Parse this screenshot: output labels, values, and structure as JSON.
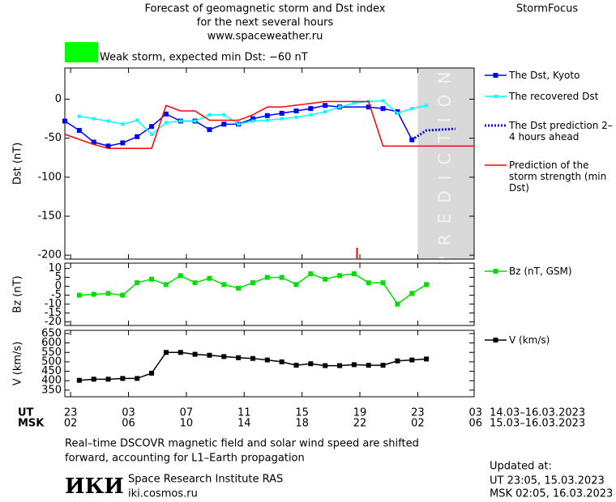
{
  "header": {
    "title_lines": [
      "Forecast of geomagnetic storm and Dst index",
      "for the next several hours",
      "www.spaceweather.ru"
    ],
    "brand": "StormFocus",
    "storm_status": {
      "color": "#00ff00",
      "text": "Weak storm, expected min Dst: −60 nT"
    }
  },
  "time_axis": {
    "xlim": [
      -0.4,
      27.9
    ],
    "ut_label": "UT",
    "msk_label": "MSK",
    "ut_ticks": [
      {
        "value": 0,
        "label": "23"
      },
      {
        "value": 4,
        "label": "03"
      },
      {
        "value": 8,
        "label": "07"
      },
      {
        "value": 12,
        "label": "11"
      },
      {
        "value": 16,
        "label": "15"
      },
      {
        "value": 20,
        "label": "19"
      },
      {
        "value": 24,
        "label": "23"
      },
      {
        "value": 28,
        "label": "03"
      }
    ],
    "msk_ticks": [
      {
        "value": 0,
        "label": "02"
      },
      {
        "value": 4,
        "label": "06"
      },
      {
        "value": 8,
        "label": "10"
      },
      {
        "value": 12,
        "label": "14"
      },
      {
        "value": 16,
        "label": "18"
      },
      {
        "value": 20,
        "label": "22"
      },
      {
        "value": 24,
        "label": "02"
      },
      {
        "value": 28,
        "label": "06"
      }
    ],
    "ut_range": "14.03–16.03.2023",
    "msk_range": "15.03–16.03.2023"
  },
  "chart_data": [
    {
      "type": "line",
      "ylabel": "Dst (nT)",
      "ylim": [
        -205,
        40
      ],
      "yticks": [
        0,
        -50,
        -100,
        -150,
        -200
      ],
      "prediction_band": {
        "label": "PREDICTION",
        "start": 24
      },
      "current_time": 19.8,
      "series": [
        {
          "name": "The Dst, Kyoto",
          "color": "#0000ff",
          "marker": "square",
          "dash": "solid",
          "x": [
            -0.4,
            0.6,
            1.6,
            2.6,
            3.6,
            4.6,
            5.6,
            6.6,
            7.6,
            8.6,
            9.6,
            10.6,
            11.6,
            12.6,
            13.6,
            14.6,
            15.6,
            16.6,
            17.6,
            18.6,
            20.6,
            21.6,
            22.6,
            23.6
          ],
          "values": [
            -28,
            -40,
            -55,
            -60,
            -56,
            -48,
            -35,
            -19,
            -28,
            -28,
            -39,
            -32,
            -32,
            -25,
            -21,
            -18,
            -15,
            -12,
            -8,
            -10,
            -10,
            -12,
            -16,
            -52
          ]
        },
        {
          "name": "The recovered Dst",
          "color": "#00ffff",
          "marker": "small-square",
          "dash": "solid",
          "x": [
            0.6,
            1.6,
            2.6,
            3.6,
            4.6,
            5.6,
            6.6,
            7.6,
            8.6,
            9.6,
            10.6,
            11.6,
            12.6,
            13.6,
            14.6,
            15.6,
            16.6,
            17.6,
            18.6,
            19.6,
            20.6,
            21.6,
            22.6,
            23.6,
            24.6
          ],
          "values": [
            -22,
            -25,
            -28,
            -32,
            -27,
            -45,
            -30,
            -28,
            -28,
            -20,
            -20,
            -32,
            -28,
            -27,
            -25,
            -23,
            -20,
            -16,
            -10,
            -5,
            -3,
            -2,
            -18,
            -12,
            -8
          ]
        },
        {
          "name": "The Dst prediction 2–4 hours ahead",
          "color": "#0000ff",
          "marker": "none",
          "dash": "dotted",
          "x": [
            23.6,
            24.6,
            26.6
          ],
          "values": [
            -52,
            -40,
            -38
          ]
        },
        {
          "name": "Prediction of the storm strength (min Dst)",
          "color": "#ff0000",
          "marker": "none",
          "dash": "solid",
          "x": [
            -0.4,
            1.6,
            2.6,
            5.6,
            6.6,
            7.6,
            8.6,
            9.6,
            11.6,
            12.6,
            13.6,
            14.6,
            17.6,
            20.6,
            21.6,
            27.9
          ],
          "values": [
            -45,
            -58,
            -63,
            -63,
            -8,
            -15,
            -15,
            -27,
            -27,
            -20,
            -10,
            -10,
            -3,
            -3,
            -60,
            -60
          ]
        }
      ]
    },
    {
      "type": "line",
      "ylabel": "Bz (nT)",
      "ylim": [
        -22,
        13
      ],
      "yticks": [
        10,
        5,
        0,
        -5,
        -10,
        -15,
        -20
      ],
      "series": [
        {
          "name": "Bz (nT, GSM)",
          "color": "#00dd00",
          "marker": "square",
          "dash": "solid",
          "x": [
            0.6,
            1.6,
            2.6,
            3.6,
            4.6,
            5.6,
            6.6,
            7.6,
            8.6,
            9.6,
            10.6,
            11.6,
            12.6,
            13.6,
            14.6,
            15.6,
            16.6,
            17.6,
            18.6,
            19.6,
            20.6,
            21.6,
            22.6,
            23.6,
            24.6
          ],
          "values": [
            -5,
            -4.5,
            -4,
            -5,
            2,
            4,
            1,
            6,
            2,
            4.5,
            1,
            -1,
            2,
            5,
            5,
            1,
            7,
            4,
            6,
            7,
            2,
            2,
            -10,
            -4,
            1
          ]
        }
      ]
    },
    {
      "type": "line",
      "ylabel": "V (km/s)",
      "ylim": [
        315,
        667
      ],
      "yticks": [
        650,
        600,
        550,
        500,
        450,
        400,
        350
      ],
      "series": [
        {
          "name": "V (km/s)",
          "color": "#000000",
          "marker": "square",
          "dash": "solid",
          "x": [
            0.6,
            1.6,
            2.6,
            3.6,
            4.6,
            5.6,
            6.6,
            7.6,
            8.6,
            9.6,
            10.6,
            11.6,
            12.6,
            13.6,
            14.6,
            15.6,
            16.6,
            17.6,
            18.6,
            19.6,
            20.6,
            21.6,
            22.6,
            23.6,
            24.6
          ],
          "values": [
            402,
            408,
            408,
            412,
            412,
            440,
            550,
            550,
            540,
            535,
            528,
            522,
            518,
            510,
            500,
            482,
            490,
            480,
            480,
            485,
            482,
            482,
            505,
            510,
            515
          ]
        }
      ]
    }
  ],
  "footer": {
    "note_lines": [
      "Real–time DSCOVR magnetic field and solar wind speed are shifted",
      "forward, accounting for L1–Earth propagation"
    ],
    "logo": "ИКИ",
    "institute": "Space Research Institute RAS",
    "site": "iki.cosmos.ru",
    "updated_label": "Updated at:",
    "updated_ut": "UT   23:05, 15.03.2023",
    "updated_msk": "MSK 02:05, 16.03.2023"
  }
}
